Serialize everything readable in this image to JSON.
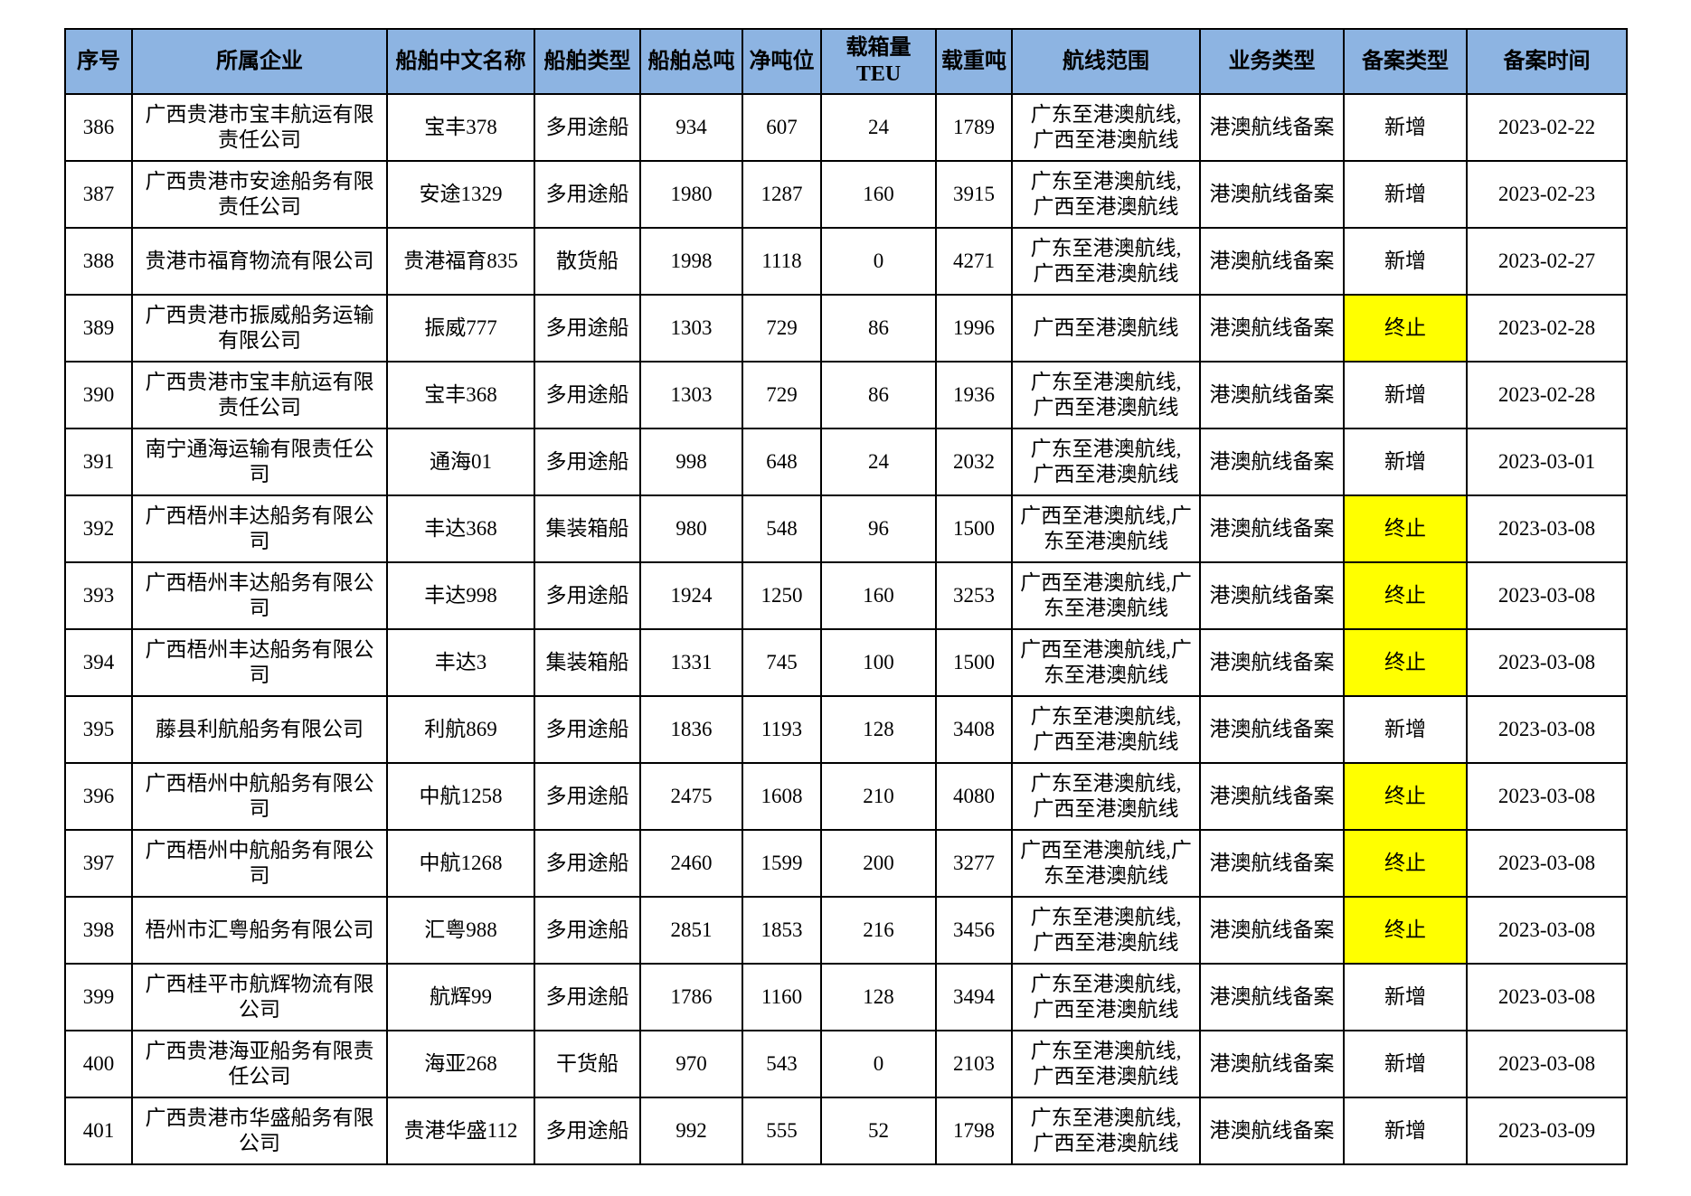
{
  "colors": {
    "header_bg": "#8DB4E2",
    "highlight_bg": "#FFFF00",
    "border": "#000000"
  },
  "table": {
    "columns": [
      {
        "key": "seq",
        "label": "序号"
      },
      {
        "key": "company",
        "label": "所属企业"
      },
      {
        "key": "ship_name",
        "label": "船舶中文名称"
      },
      {
        "key": "ship_type",
        "label": "船舶类型"
      },
      {
        "key": "gross",
        "label": "船舶总吨"
      },
      {
        "key": "net",
        "label": "净吨位"
      },
      {
        "key": "teu",
        "label": "载箱量TEU"
      },
      {
        "key": "dwt",
        "label": "载重吨"
      },
      {
        "key": "route",
        "label": "航线范围"
      },
      {
        "key": "business",
        "label": "业务类型"
      },
      {
        "key": "rec_type",
        "label": "备案类型"
      },
      {
        "key": "rec_date",
        "label": "备案时间"
      }
    ],
    "rows": [
      {
        "seq": "386",
        "company": "广西贵港市宝丰航运有限\n责任公司",
        "ship_name": "宝丰378",
        "ship_type": "多用途船",
        "gross": "934",
        "net": "607",
        "teu": "24",
        "dwt": "1789",
        "route": "广东至港澳航线,\n广西至港澳航线",
        "business": "港澳航线备案",
        "rec_type": "新增",
        "rec_type_highlight": false,
        "rec_date": "2023-02-22"
      },
      {
        "seq": "387",
        "company": "广西贵港市安途船务有限\n责任公司",
        "ship_name": "安途1329",
        "ship_type": "多用途船",
        "gross": "1980",
        "net": "1287",
        "teu": "160",
        "dwt": "3915",
        "route": "广东至港澳航线,\n广西至港澳航线",
        "business": "港澳航线备案",
        "rec_type": "新增",
        "rec_type_highlight": false,
        "rec_date": "2023-02-23"
      },
      {
        "seq": "388",
        "company": "贵港市福育物流有限公司",
        "ship_name": "贵港福育835",
        "ship_type": "散货船",
        "gross": "1998",
        "net": "1118",
        "teu": "0",
        "dwt": "4271",
        "route": "广东至港澳航线,\n广西至港澳航线",
        "business": "港澳航线备案",
        "rec_type": "新增",
        "rec_type_highlight": false,
        "rec_date": "2023-02-27"
      },
      {
        "seq": "389",
        "company": "广西贵港市振威船务运输\n有限公司",
        "ship_name": "振威777",
        "ship_type": "多用途船",
        "gross": "1303",
        "net": "729",
        "teu": "86",
        "dwt": "1996",
        "route": "广西至港澳航线",
        "business": "港澳航线备案",
        "rec_type": "终止",
        "rec_type_highlight": true,
        "rec_date": "2023-02-28"
      },
      {
        "seq": "390",
        "company": "广西贵港市宝丰航运有限\n责任公司",
        "ship_name": "宝丰368",
        "ship_type": "多用途船",
        "gross": "1303",
        "net": "729",
        "teu": "86",
        "dwt": "1936",
        "route": "广东至港澳航线,\n广西至港澳航线",
        "business": "港澳航线备案",
        "rec_type": "新增",
        "rec_type_highlight": false,
        "rec_date": "2023-02-28"
      },
      {
        "seq": "391",
        "company": "南宁通海运输有限责任公\n司",
        "ship_name": "通海01",
        "ship_type": "多用途船",
        "gross": "998",
        "net": "648",
        "teu": "24",
        "dwt": "2032",
        "route": "广东至港澳航线,\n广西至港澳航线",
        "business": "港澳航线备案",
        "rec_type": "新增",
        "rec_type_highlight": false,
        "rec_date": "2023-03-01"
      },
      {
        "seq": "392",
        "company": "广西梧州丰达船务有限公\n司",
        "ship_name": "丰达368",
        "ship_type": "集装箱船",
        "gross": "980",
        "net": "548",
        "teu": "96",
        "dwt": "1500",
        "route": "广西至港澳航线,广\n东至港澳航线",
        "business": "港澳航线备案",
        "rec_type": "终止",
        "rec_type_highlight": true,
        "rec_date": "2023-03-08"
      },
      {
        "seq": "393",
        "company": "广西梧州丰达船务有限公\n司",
        "ship_name": "丰达998",
        "ship_type": "多用途船",
        "gross": "1924",
        "net": "1250",
        "teu": "160",
        "dwt": "3253",
        "route": "广西至港澳航线,广\n东至港澳航线",
        "business": "港澳航线备案",
        "rec_type": "终止",
        "rec_type_highlight": true,
        "rec_date": "2023-03-08"
      },
      {
        "seq": "394",
        "company": "广西梧州丰达船务有限公\n司",
        "ship_name": "丰达3",
        "ship_type": "集装箱船",
        "gross": "1331",
        "net": "745",
        "teu": "100",
        "dwt": "1500",
        "route": "广西至港澳航线,广\n东至港澳航线",
        "business": "港澳航线备案",
        "rec_type": "终止",
        "rec_type_highlight": true,
        "rec_date": "2023-03-08"
      },
      {
        "seq": "395",
        "company": "藤县利航船务有限公司",
        "ship_name": "利航869",
        "ship_type": "多用途船",
        "gross": "1836",
        "net": "1193",
        "teu": "128",
        "dwt": "3408",
        "route": "广东至港澳航线,\n广西至港澳航线",
        "business": "港澳航线备案",
        "rec_type": "新增",
        "rec_type_highlight": false,
        "rec_date": "2023-03-08"
      },
      {
        "seq": "396",
        "company": "广西梧州中航船务有限公\n司",
        "ship_name": "中航1258",
        "ship_type": "多用途船",
        "gross": "2475",
        "net": "1608",
        "teu": "210",
        "dwt": "4080",
        "route": "广东至港澳航线,\n广西至港澳航线",
        "business": "港澳航线备案",
        "rec_type": "终止",
        "rec_type_highlight": true,
        "rec_date": "2023-03-08"
      },
      {
        "seq": "397",
        "company": "广西梧州中航船务有限公\n司",
        "ship_name": "中航1268",
        "ship_type": "多用途船",
        "gross": "2460",
        "net": "1599",
        "teu": "200",
        "dwt": "3277",
        "route": "广西至港澳航线,广\n东至港澳航线",
        "business": "港澳航线备案",
        "rec_type": "终止",
        "rec_type_highlight": true,
        "rec_date": "2023-03-08"
      },
      {
        "seq": "398",
        "company": "梧州市汇粤船务有限公司",
        "ship_name": "汇粤988",
        "ship_type": "多用途船",
        "gross": "2851",
        "net": "1853",
        "teu": "216",
        "dwt": "3456",
        "route": "广东至港澳航线,\n广西至港澳航线",
        "business": "港澳航线备案",
        "rec_type": "终止",
        "rec_type_highlight": true,
        "rec_date": "2023-03-08"
      },
      {
        "seq": "399",
        "company": "广西桂平市航辉物流有限\n公司",
        "ship_name": "航辉99",
        "ship_type": "多用途船",
        "gross": "1786",
        "net": "1160",
        "teu": "128",
        "dwt": "3494",
        "route": "广东至港澳航线,\n广西至港澳航线",
        "business": "港澳航线备案",
        "rec_type": "新增",
        "rec_type_highlight": false,
        "rec_date": "2023-03-08"
      },
      {
        "seq": "400",
        "company": "广西贵港海亚船务有限责\n任公司",
        "ship_name": "海亚268",
        "ship_type": "干货船",
        "gross": "970",
        "net": "543",
        "teu": "0",
        "dwt": "2103",
        "route": "广东至港澳航线,\n广西至港澳航线",
        "business": "港澳航线备案",
        "rec_type": "新增",
        "rec_type_highlight": false,
        "rec_date": "2023-03-08"
      },
      {
        "seq": "401",
        "company": "广西贵港市华盛船务有限\n公司",
        "ship_name": "贵港华盛112",
        "ship_type": "多用途船",
        "gross": "992",
        "net": "555",
        "teu": "52",
        "dwt": "1798",
        "route": "广东至港澳航线,\n广西至港澳航线",
        "business": "港澳航线备案",
        "rec_type": "新增",
        "rec_type_highlight": false,
        "rec_date": "2023-03-09"
      }
    ]
  }
}
